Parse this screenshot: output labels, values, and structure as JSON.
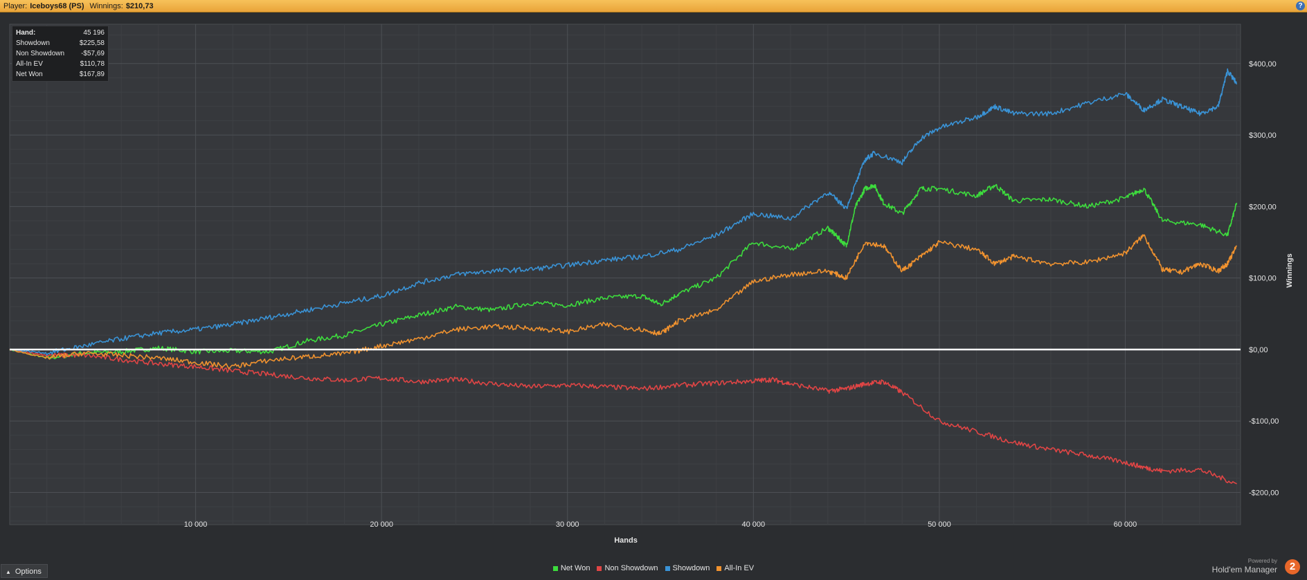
{
  "header": {
    "player_label": "Player:",
    "player_name": "Iceboys68 (PS)",
    "winnings_label": "Winnings:",
    "winnings_value": "$210,73",
    "help_glyph": "?"
  },
  "stats": [
    {
      "label": "Hand:",
      "value": "45 196"
    },
    {
      "label": "Showdown",
      "value": "$225,58"
    },
    {
      "label": "Non Showdown",
      "value": "-$57,69"
    },
    {
      "label": "All-In EV",
      "value": "$110,78"
    },
    {
      "label": "Net Won",
      "value": "$167,89"
    }
  ],
  "options_label": "Options",
  "brand": {
    "powered_by": "Powered by",
    "name": "Hold'em Manager",
    "logo_glyph": "2"
  },
  "colors": {
    "net_won": "#3ddc3d",
    "non_showdown": "#e04545",
    "showdown": "#3a93d6",
    "allin_ev": "#f0922f"
  },
  "chart_data": {
    "type": "line",
    "xlabel": "Hands",
    "ylabel": "Winnings",
    "xlim": [
      0,
      66200
    ],
    "ylim": [
      -245,
      455
    ],
    "xticks": [
      10000,
      20000,
      30000,
      40000,
      50000,
      60000
    ],
    "xtick_labels": [
      "10 000",
      "20 000",
      "30 000",
      "40 000",
      "50 000",
      "60 000"
    ],
    "yticks": [
      -200,
      -100,
      0,
      100,
      200,
      300,
      400
    ],
    "ytick_labels": [
      "-$200,00",
      "-$100,00",
      "$0,00",
      "$100,00",
      "$200,00",
      "$300,00",
      "$400,00"
    ],
    "grid": true,
    "legend_position": "bottom",
    "zero_line": true,
    "series": [
      {
        "name": "Net Won",
        "color": "#3ddc3d",
        "x": [
          0,
          2000,
          4000,
          6000,
          8000,
          10000,
          12000,
          14000,
          16000,
          18000,
          20000,
          22000,
          24000,
          26000,
          28000,
          30000,
          32000,
          34000,
          35000,
          36000,
          38000,
          40000,
          42000,
          44000,
          44500,
          45000,
          45500,
          46000,
          46500,
          47000,
          48000,
          49000,
          50000,
          52000,
          53000,
          54000,
          56000,
          58000,
          60000,
          61000,
          62000,
          64000,
          65500,
          66000
        ],
        "y": [
          0,
          -12,
          -5,
          -3,
          2,
          -3,
          -2,
          -3,
          12,
          20,
          35,
          48,
          60,
          55,
          65,
          62,
          72,
          75,
          63,
          78,
          100,
          150,
          140,
          170,
          158,
          145,
          200,
          225,
          230,
          205,
          190,
          225,
          225,
          215,
          230,
          208,
          210,
          200,
          212,
          225,
          180,
          175,
          160,
          205
        ]
      },
      {
        "name": "Non Showdown",
        "color": "#e04545",
        "x": [
          0,
          2000,
          4000,
          6000,
          8000,
          10000,
          12000,
          14000,
          16000,
          18000,
          20000,
          22000,
          24000,
          26000,
          28000,
          30000,
          32000,
          34000,
          36000,
          38000,
          40000,
          41000,
          42000,
          44000,
          45000,
          46000,
          47000,
          48000,
          50000,
          52000,
          54000,
          56000,
          58000,
          60000,
          61000,
          62000,
          64000,
          66000
        ],
        "y": [
          0,
          -8,
          -8,
          -14,
          -20,
          -24,
          -30,
          -35,
          -40,
          -43,
          -40,
          -45,
          -42,
          -48,
          -52,
          -50,
          -52,
          -55,
          -50,
          -47,
          -44,
          -42,
          -48,
          -58,
          -55,
          -48,
          -45,
          -60,
          -100,
          -115,
          -130,
          -140,
          -148,
          -158,
          -165,
          -170,
          -168,
          -188
        ]
      },
      {
        "name": "Showdown",
        "color": "#3a93d6",
        "x": [
          0,
          2000,
          4000,
          6000,
          8000,
          10000,
          12000,
          14000,
          16000,
          18000,
          20000,
          22000,
          24000,
          26000,
          28000,
          30000,
          32000,
          34000,
          36000,
          38000,
          40000,
          42000,
          44000,
          45000,
          46000,
          46500,
          48000,
          49000,
          50000,
          52000,
          53000,
          54000,
          56000,
          58000,
          60000,
          61000,
          62000,
          63000,
          64000,
          65000,
          65500,
          66000
        ],
        "y": [
          0,
          -5,
          5,
          15,
          23,
          28,
          35,
          45,
          55,
          65,
          75,
          93,
          105,
          110,
          112,
          118,
          125,
          130,
          140,
          160,
          190,
          183,
          220,
          198,
          265,
          275,
          262,
          295,
          310,
          325,
          340,
          330,
          330,
          345,
          358,
          335,
          350,
          340,
          330,
          340,
          390,
          372
        ]
      },
      {
        "name": "All-In EV",
        "color": "#f0922f",
        "x": [
          0,
          2000,
          4000,
          6000,
          8000,
          10000,
          12000,
          14000,
          16000,
          18000,
          20000,
          22000,
          24000,
          26000,
          28000,
          30000,
          32000,
          34000,
          35000,
          36000,
          38000,
          40000,
          42000,
          44000,
          45000,
          46000,
          47000,
          48000,
          49000,
          50000,
          52000,
          53000,
          54000,
          56000,
          58000,
          60000,
          61000,
          62000,
          63000,
          64000,
          65000,
          65500,
          66000
        ],
        "y": [
          0,
          -12,
          -5,
          -8,
          -12,
          -18,
          -24,
          -15,
          -10,
          -6,
          5,
          15,
          28,
          32,
          30,
          25,
          35,
          28,
          22,
          40,
          55,
          95,
          105,
          110,
          100,
          150,
          145,
          110,
          130,
          150,
          140,
          120,
          130,
          120,
          122,
          135,
          160,
          112,
          108,
          120,
          110,
          120,
          145
        ]
      }
    ]
  }
}
